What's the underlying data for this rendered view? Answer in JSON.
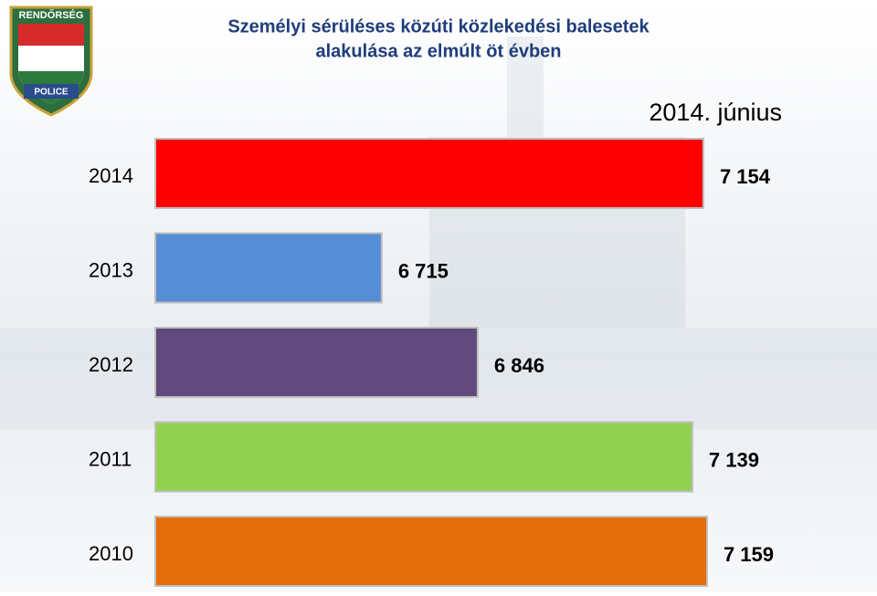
{
  "chart_data": {
    "type": "bar",
    "orientation": "horizontal",
    "title": [
      "Személyi sérüléses közúti közlekedési balesetek",
      "alakulása az elmúlt öt évben"
    ],
    "annotation": "2014. június",
    "logo": {
      "top_text": "RENDŐRSÉG",
      "bottom_text": "POLICE"
    },
    "categories": [
      "2014",
      "2013",
      "2012",
      "2011",
      "2010"
    ],
    "values": [
      7154,
      6715,
      6846,
      7139,
      7159
    ],
    "value_labels": [
      "7 154",
      "6 715",
      "6 846",
      "7 139",
      "7 159"
    ],
    "colors": [
      "#ff0000",
      "#558ed5",
      "#604a7b",
      "#92d050",
      "#e46c0a"
    ],
    "xlim": [
      6406,
      7280
    ]
  }
}
